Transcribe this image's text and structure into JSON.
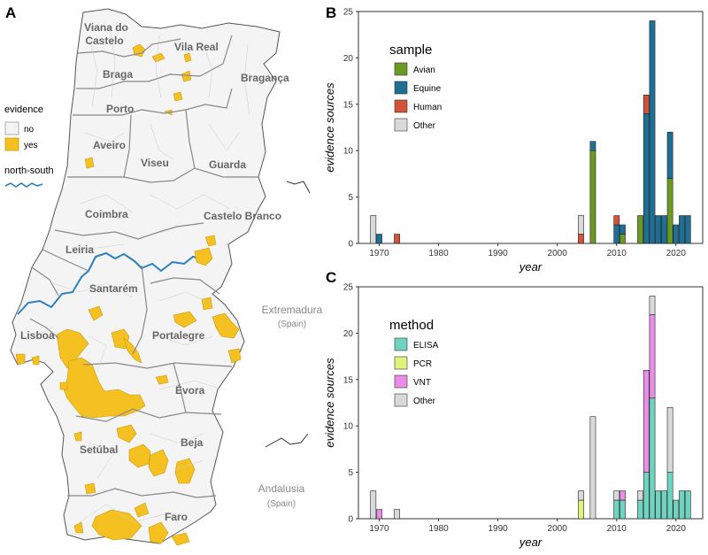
{
  "panel_labels": [
    "A",
    "B",
    "C"
  ],
  "map": {
    "legend": {
      "title": "evidence",
      "items": [
        {
          "label": "no",
          "color": "#f4f4f4"
        },
        {
          "label": "yes",
          "color": "#f5c121"
        }
      ],
      "line_label": "north-south",
      "line_color": "#2a7fbf"
    },
    "districts": [
      "Viana do Castelo",
      "Braga",
      "Vila Real",
      "Bragança",
      "Porto",
      "Aveiro",
      "Viseu",
      "Guarda",
      "Coimbra",
      "Castelo Branco",
      "Leiria",
      "Santarém",
      "Lisboa",
      "Portalegre",
      "Évora",
      "Setúbal",
      "Beja",
      "Faro"
    ],
    "neighbours": [
      {
        "name": "Extremadura",
        "sub": "(Spain)"
      },
      {
        "name": "Andalusia",
        "sub": "(Spain)"
      }
    ],
    "colors": {
      "land": "#f4f4f4",
      "border": "#bdbdbd",
      "yes": "#f5c121"
    }
  },
  "chart_data": [
    {
      "type": "bar",
      "stacked": true,
      "panel": "B",
      "xlabel": "year",
      "ylabel": "evidence sources",
      "xlim": [
        1966.5,
        2024.5
      ],
      "ylim": [
        0,
        25
      ],
      "xticks": [
        1970,
        1980,
        1990,
        2000,
        2010,
        2020
      ],
      "yticks": [
        0,
        5,
        10,
        15,
        20,
        25
      ],
      "grid": false,
      "legend": {
        "title": "sample",
        "position": "top-left"
      },
      "x": [
        1969,
        1970,
        1973,
        2004,
        2006,
        2010,
        2011,
        2014,
        2015,
        2016,
        2017,
        2018,
        2019,
        2020,
        2021,
        2022
      ],
      "series": [
        {
          "name": "Avian",
          "color": "#6a9a22",
          "values": [
            0,
            0,
            0,
            0,
            10,
            0,
            1,
            3,
            0,
            0,
            0,
            0,
            7,
            0,
            0,
            0
          ]
        },
        {
          "name": "Equine",
          "color": "#1f6f94",
          "values": [
            0,
            1,
            0,
            0,
            1,
            2,
            1,
            0,
            14,
            24,
            3,
            3,
            5,
            2,
            3,
            3
          ]
        },
        {
          "name": "Human",
          "color": "#d0533a",
          "values": [
            0,
            0,
            1,
            1,
            0,
            1,
            0,
            0,
            2,
            0,
            0,
            0,
            0,
            0,
            0,
            0
          ]
        },
        {
          "name": "Other",
          "color": "#d9d9d9",
          "values": [
            3,
            0,
            0,
            2,
            0,
            0,
            0,
            0,
            0,
            0,
            0,
            0,
            0,
            0,
            0,
            0
          ]
        }
      ]
    },
    {
      "type": "bar",
      "stacked": true,
      "panel": "C",
      "xlabel": "year",
      "ylabel": "evidence sources",
      "xlim": [
        1966.5,
        2024.5
      ],
      "ylim": [
        0,
        25
      ],
      "xticks": [
        1970,
        1980,
        1990,
        2000,
        2010,
        2020
      ],
      "yticks": [
        0,
        5,
        10,
        15,
        20,
        25
      ],
      "grid": false,
      "legend": {
        "title": "method",
        "position": "top-left"
      },
      "x": [
        1969,
        1970,
        1973,
        2004,
        2006,
        2010,
        2011,
        2014,
        2015,
        2016,
        2017,
        2018,
        2019,
        2020,
        2021,
        2022
      ],
      "series": [
        {
          "name": "ELISA",
          "color": "#6fd3bf",
          "values": [
            0,
            0,
            0,
            0,
            0,
            2,
            2,
            2,
            5,
            13,
            3,
            3,
            5,
            2,
            3,
            3
          ]
        },
        {
          "name": "PCR",
          "color": "#e2f27a",
          "values": [
            0,
            0,
            0,
            2,
            0,
            0,
            0,
            0,
            0,
            0,
            0,
            0,
            0,
            0,
            0,
            0
          ]
        },
        {
          "name": "VNT",
          "color": "#e88ee6",
          "values": [
            0,
            1,
            0,
            0,
            0,
            0,
            1,
            0,
            11,
            9,
            0,
            0,
            0,
            0,
            0,
            0
          ]
        },
        {
          "name": "Other",
          "color": "#d9d9d9",
          "values": [
            3,
            0,
            1,
            1,
            11,
            1,
            0,
            1,
            0,
            2,
            0,
            0,
            7,
            0,
            0,
            0
          ]
        }
      ]
    }
  ]
}
